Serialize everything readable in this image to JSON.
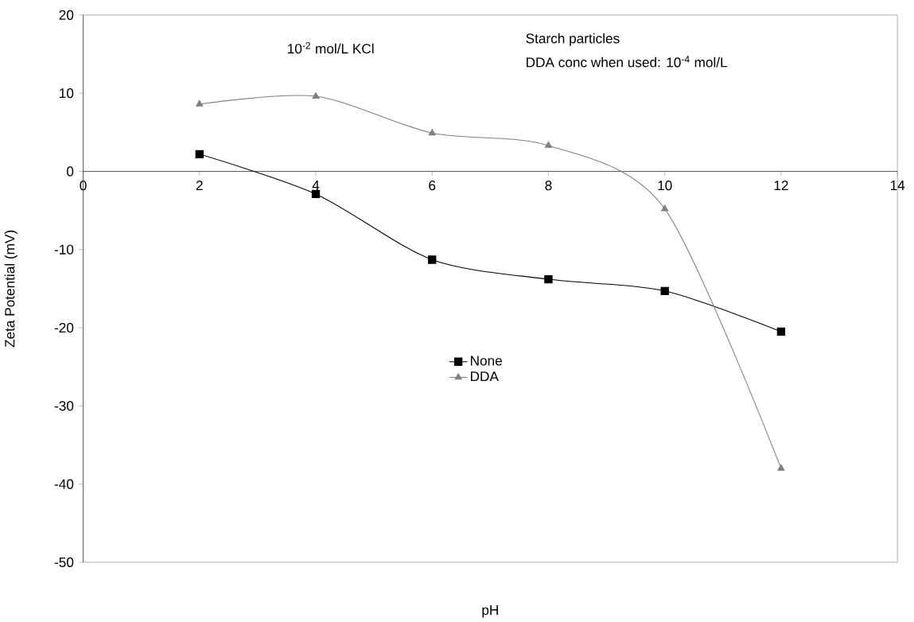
{
  "chart_data": {
    "type": "line",
    "xlabel": "pH",
    "ylabel": "Zeta Potential (mV)",
    "annotations": [
      "10$^{-2}$ mol/L KCl",
      "Starch particles",
      "DDA conc when used: 10$^{-4}$ mol/L"
    ],
    "x": [
      2,
      4,
      6,
      8,
      10,
      12
    ],
    "series": [
      {
        "name": "None",
        "color": "#000000",
        "marker": "square",
        "values": [
          2.2,
          -2.9,
          -11.3,
          -13.8,
          -15.3,
          -20.5
        ]
      },
      {
        "name": "DDA",
        "color": "#808080",
        "marker": "triangle",
        "values": [
          8.6,
          9.6,
          4.9,
          3.3,
          -4.8,
          -38
        ]
      }
    ],
    "xlim": [
      0,
      14
    ],
    "xticks": [
      0,
      2,
      4,
      6,
      8,
      10,
      12,
      14
    ],
    "ylim": [
      -50,
      20
    ],
    "yticks": [
      -50,
      -40,
      -30,
      -20,
      -10,
      0,
      10,
      20
    ],
    "grid": false,
    "legend": "center",
    "line_style": "solid"
  }
}
